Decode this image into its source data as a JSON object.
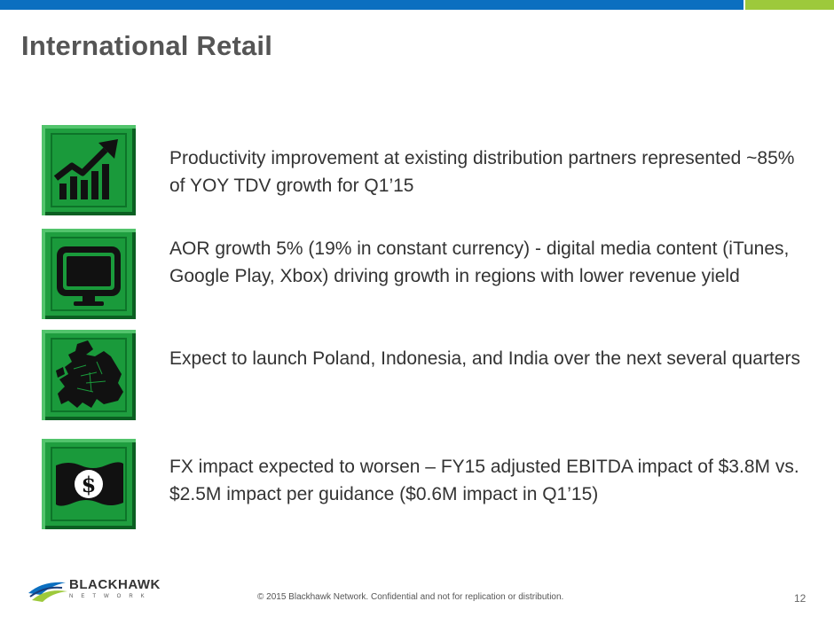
{
  "slide": {
    "title": "International Retail",
    "page_number": "12"
  },
  "bullets": [
    {
      "icon": "growth-chart-icon",
      "text": "Productivity improvement at existing distribution partners represented ~85% of YOY TDV growth for Q1’15"
    },
    {
      "icon": "tv-screen-icon",
      "text": "AOR growth 5% (19% in constant currency) - digital media content (iTunes, Google Play, Xbox) driving growth in regions with lower revenue yield"
    },
    {
      "icon": "europe-map-icon",
      "text": "Expect to launch Poland, Indonesia, and India over the next several quarters"
    },
    {
      "icon": "dollar-bill-icon",
      "text": "FX impact expected to worsen – FY15 adjusted EBITDA impact of $3.8M vs. $2.5M impact per guidance ($0.6M impact in Q1’15)"
    }
  ],
  "footer": {
    "logo_name": "BLACKHAWK",
    "logo_sub": "NETWORK",
    "copyright": "© 2015 Blackhawk Network. Confidential and not for replication or distribution."
  },
  "colors": {
    "top_bar_blue": "#0b6fc0",
    "top_bar_green": "#9dc93b",
    "icon_green": "#1f9e3f",
    "title_gray": "#555555"
  }
}
